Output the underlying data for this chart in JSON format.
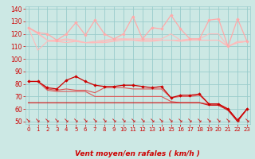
{
  "bg_color": "#cce8e4",
  "grid_color": "#99cccc",
  "xlabel": "Vent moyen/en rafales ( km/h )",
  "xlabel_color": "#cc0000",
  "tick_color": "#cc0000",
  "ylim": [
    48,
    142
  ],
  "xlim": [
    -0.3,
    23.3
  ],
  "yticks": [
    50,
    60,
    70,
    80,
    90,
    100,
    110,
    120,
    130,
    140
  ],
  "xticks": [
    0,
    1,
    2,
    3,
    4,
    5,
    6,
    7,
    8,
    9,
    10,
    11,
    12,
    13,
    14,
    15,
    16,
    17,
    18,
    19,
    20,
    21,
    22,
    23
  ],
  "line_rafales_max": [
    125,
    121,
    120,
    115,
    120,
    129,
    119,
    131,
    120,
    116,
    120,
    134,
    116,
    125,
    124,
    135,
    124,
    116,
    116,
    131,
    132,
    110,
    132,
    114
  ],
  "line_rafales_q90": [
    125,
    121,
    115,
    115,
    116,
    115,
    113,
    114,
    115,
    116,
    116,
    116,
    116,
    116,
    116,
    120,
    115,
    116,
    116,
    120,
    120,
    110,
    114,
    114
  ],
  "line_rafales_med": [
    125,
    120,
    115,
    114,
    115,
    114,
    113,
    113,
    114,
    115,
    116,
    115,
    115,
    115,
    115,
    115,
    115,
    115,
    115,
    115,
    115,
    110,
    113,
    114
  ],
  "line_rafales_q10": [
    125,
    107,
    114,
    114,
    113,
    114,
    113,
    113,
    113,
    114,
    115,
    115,
    114,
    114,
    115,
    115,
    114,
    115,
    115,
    115,
    115,
    110,
    113,
    114
  ],
  "line_vent_max": [
    82,
    82,
    77,
    76,
    83,
    86,
    82,
    79,
    78,
    78,
    79,
    79,
    78,
    77,
    78,
    69,
    71,
    71,
    72,
    64,
    64,
    60,
    51,
    60
  ],
  "line_vent_q90": [
    82,
    82,
    76,
    75,
    76,
    75,
    75,
    73,
    77,
    77,
    77,
    76,
    76,
    76,
    76,
    69,
    70,
    70,
    71,
    64,
    64,
    60,
    51,
    60
  ],
  "line_vent_med": [
    82,
    82,
    75,
    74,
    74,
    74,
    74,
    70,
    70,
    70,
    70,
    70,
    70,
    70,
    70,
    66,
    65,
    65,
    65,
    64,
    64,
    59,
    51,
    60
  ],
  "line_vent_q10": [
    65,
    65,
    65,
    65,
    65,
    65,
    65,
    65,
    65,
    65,
    65,
    65,
    65,
    65,
    65,
    65,
    65,
    65,
    65,
    63,
    63,
    59,
    50,
    60
  ],
  "color_rafales_max": "#ffaaaa",
  "color_rafales_other": "#ffbbbb",
  "color_vent_max": "#cc0000",
  "color_vent_other": "#dd5555",
  "color_vent_q10": "#cc2222",
  "arrow_color": "#cc2222"
}
